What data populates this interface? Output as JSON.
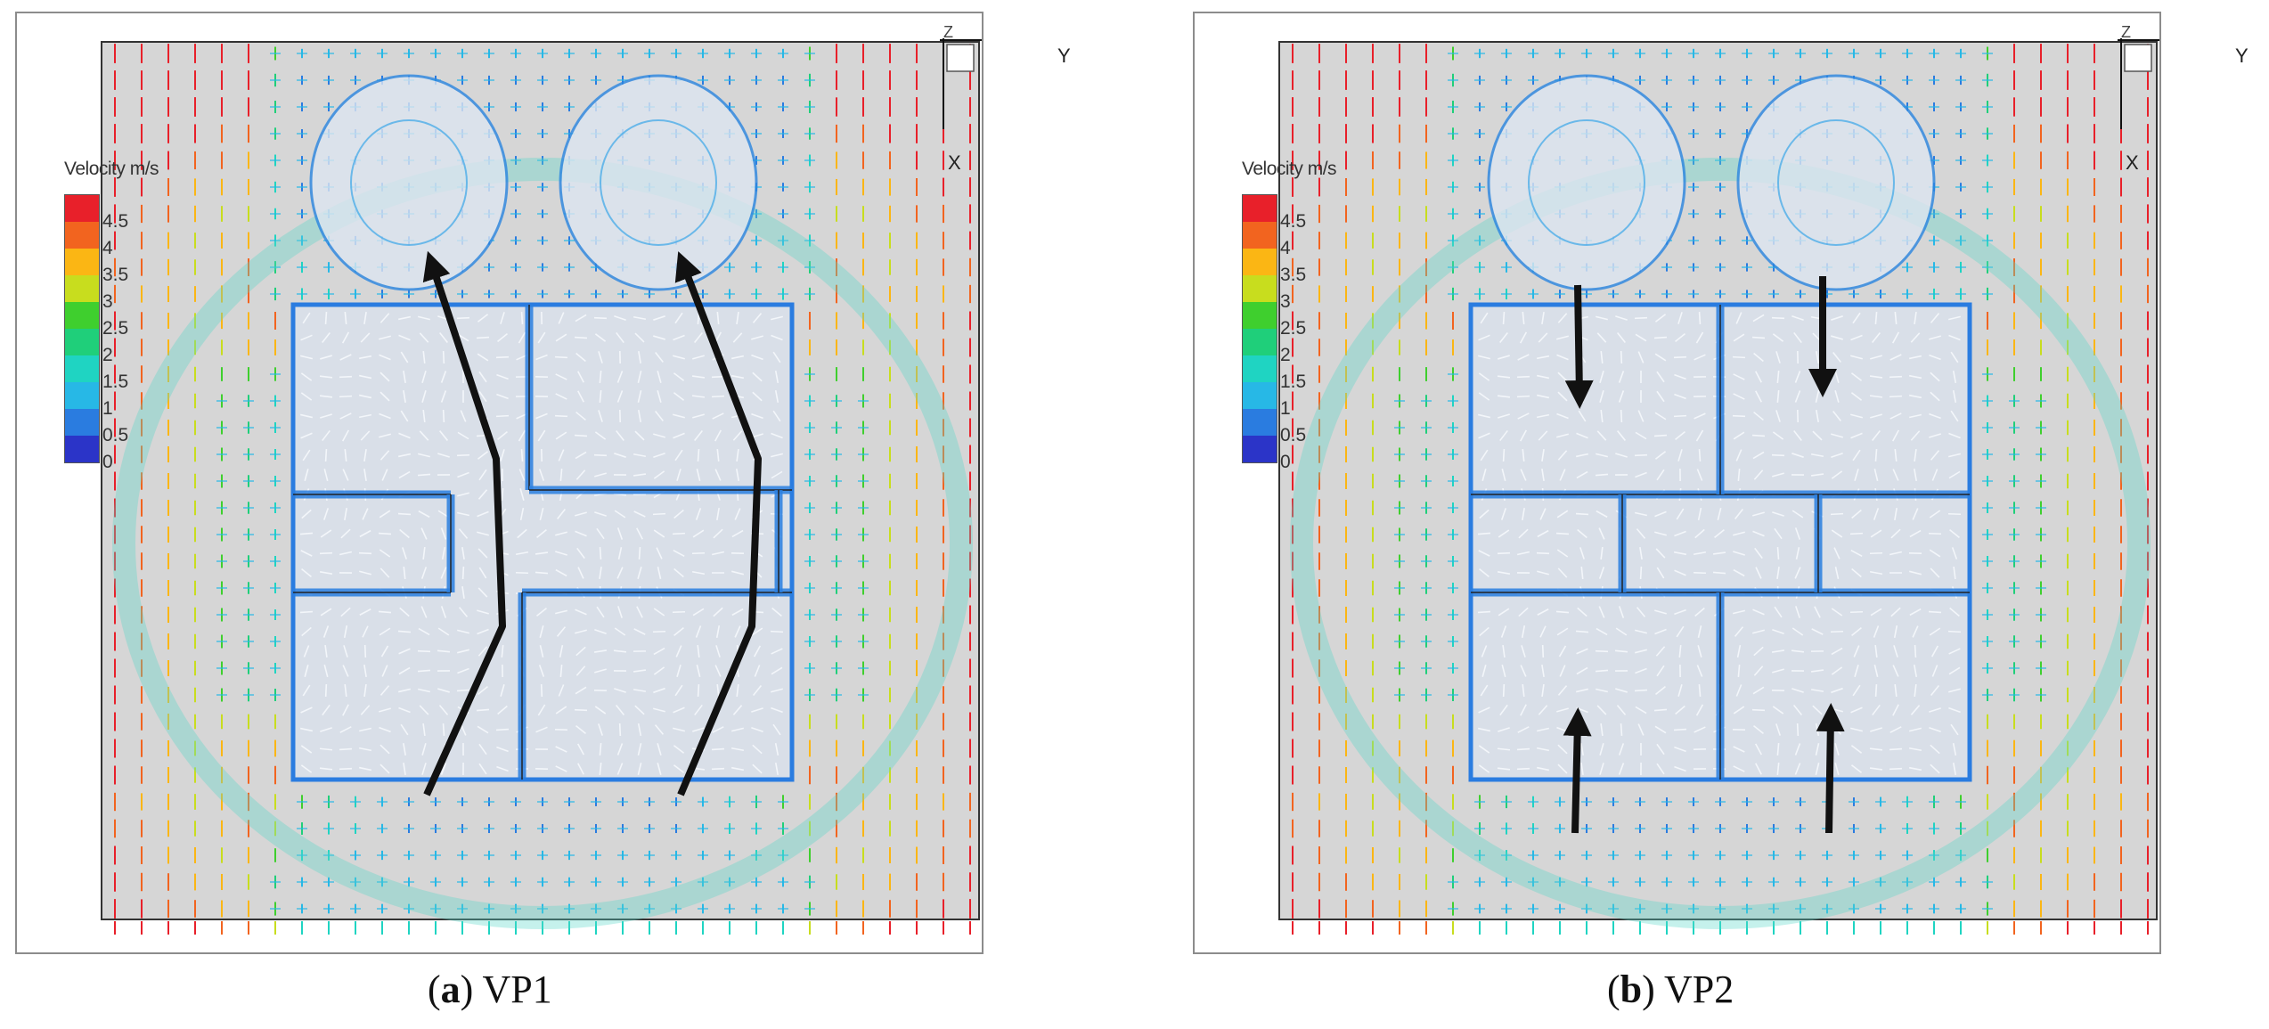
{
  "panels": [
    {
      "id": "a",
      "caption_letter": "a",
      "caption_text": "VP1",
      "legend_title": "Velocity m/s",
      "legend_ticks": [
        "4.5",
        "4",
        "3.5",
        "3",
        "2.5",
        "2",
        "1.5",
        "1",
        "0.5",
        "0"
      ],
      "axis": {
        "y": "Y",
        "x": "X",
        "z": "Z"
      },
      "arrows_direction": "upward-diagonal"
    },
    {
      "id": "b",
      "caption_letter": "b",
      "caption_text": "VP2",
      "legend_title": "Velocity m/s",
      "legend_ticks": [
        "4.5",
        "4",
        "3.5",
        "3",
        "2.5",
        "2",
        "1.5",
        "1",
        "0.5",
        "0"
      ],
      "axis": {
        "y": "Y",
        "x": "X",
        "z": "Z"
      },
      "arrows_direction": "converging-vertical"
    }
  ],
  "colors": {
    "scale": [
      "#e8202a",
      "#f2641f",
      "#fbb614",
      "#c8dd1e",
      "#3fcf2e",
      "#1fcf7a",
      "#1fd4c2",
      "#27b8e6",
      "#2a7ce0",
      "#2b34c8"
    ],
    "background": "#d6d6d6",
    "vector_low": "#e6eef7",
    "arrow": "#111111"
  }
}
